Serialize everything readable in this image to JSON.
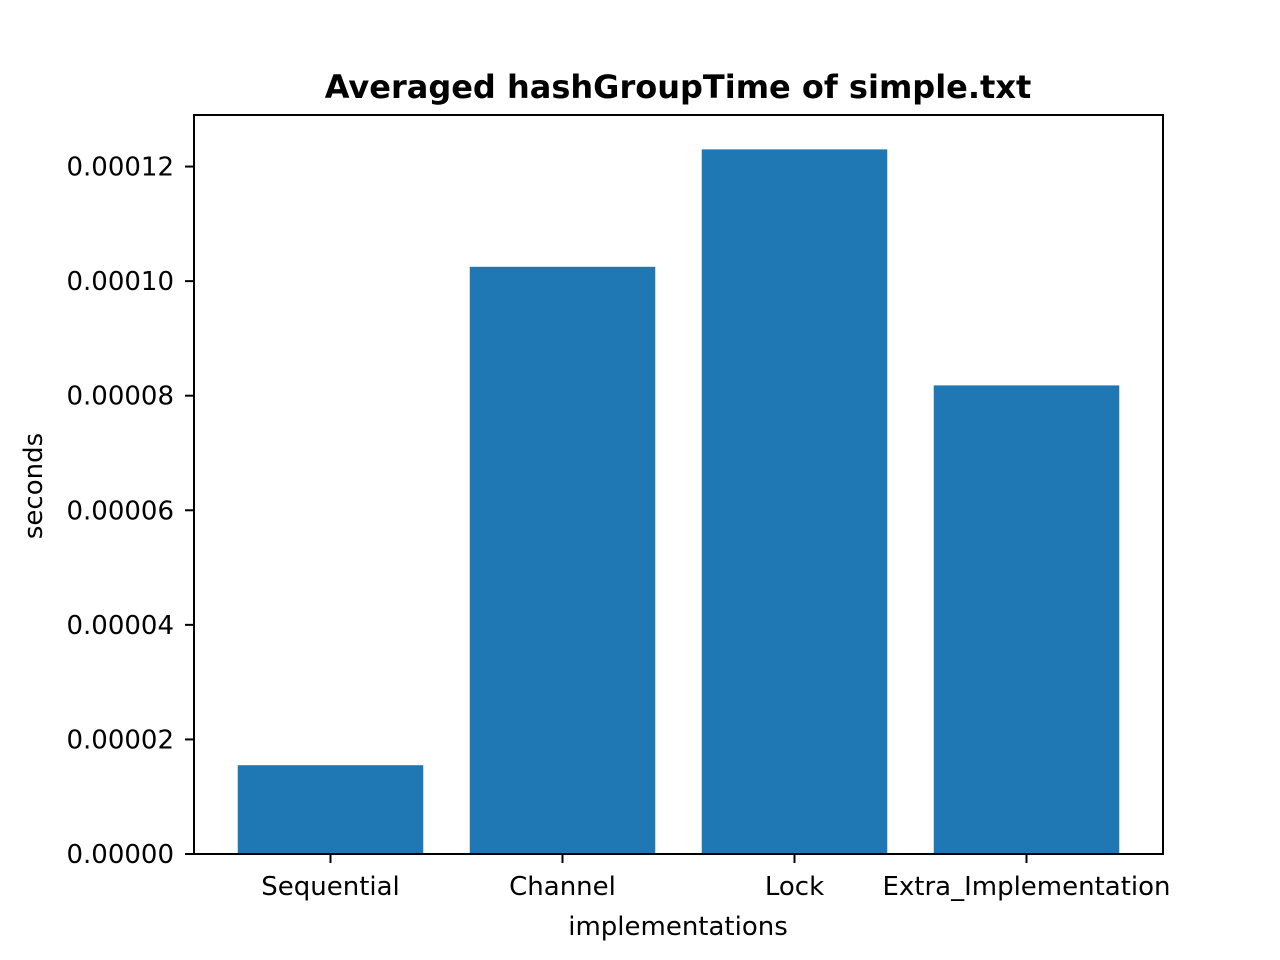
{
  "chart_data": {
    "type": "bar",
    "title": "Averaged hashGroupTime of simple.txt",
    "xlabel": "implementations",
    "ylabel": "seconds",
    "categories": [
      "Sequential",
      "Channel",
      "Lock",
      "Extra_Implementation"
    ],
    "values": [
      1.55e-05,
      0.0001025,
      0.000123,
      8.18e-05
    ],
    "yticks": [
      0,
      2e-05,
      4e-05,
      6e-05,
      8e-05,
      0.0001,
      0.00012
    ],
    "ytick_labels": [
      "0.00000",
      "0.00002",
      "0.00004",
      "0.00006",
      "0.00008",
      "0.00010",
      "0.00012"
    ],
    "ylim": [
      0,
      0.000129
    ],
    "grid": false,
    "bar_color": "#1f77b4"
  }
}
